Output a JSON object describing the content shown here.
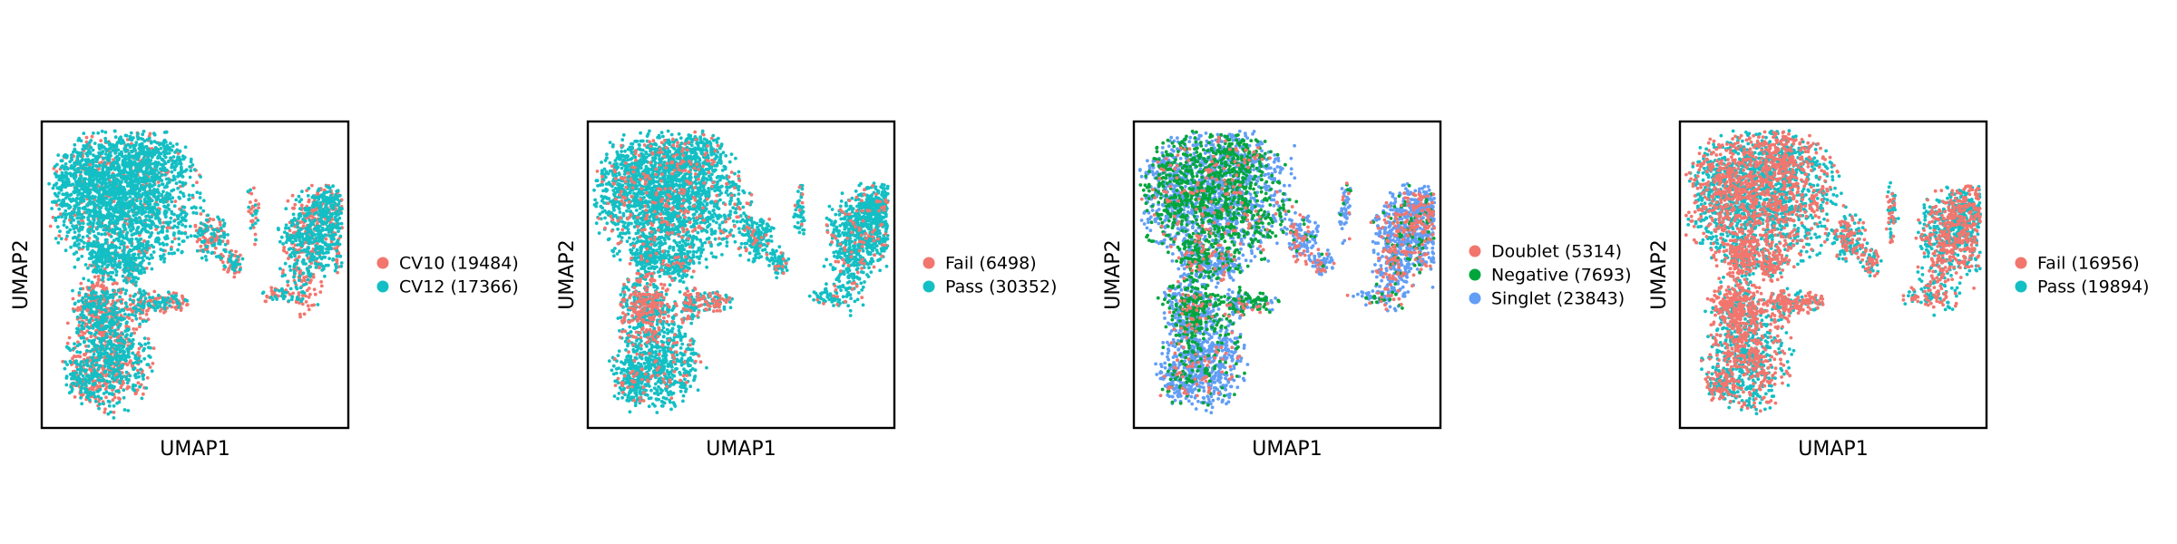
{
  "chart_data": [
    {
      "type": "scatter",
      "title": "",
      "xlabel": "UMAP1",
      "ylabel": "UMAP2",
      "grid": false,
      "legend_position": "right",
      "series": [
        {
          "name": "CV10 (19484)",
          "count": 19484,
          "color": "#F2766E"
        },
        {
          "name": "CV12 (17366)",
          "count": 17366,
          "color": "#13BFC4"
        }
      ]
    },
    {
      "type": "scatter",
      "title": "",
      "xlabel": "UMAP1",
      "ylabel": "UMAP2",
      "grid": false,
      "legend_position": "right",
      "series": [
        {
          "name": "Fail (6498)",
          "count": 6498,
          "color": "#F2766E"
        },
        {
          "name": "Pass (30352)",
          "count": 30352,
          "color": "#13BFC4"
        }
      ]
    },
    {
      "type": "scatter",
      "title": "",
      "xlabel": "UMAP1",
      "ylabel": "UMAP2",
      "grid": false,
      "legend_position": "right",
      "series": [
        {
          "name": "Doublet (5314)",
          "count": 5314,
          "color": "#F2766E"
        },
        {
          "name": "Negative (7693)",
          "count": 7693,
          "color": "#00A63C"
        },
        {
          "name": "Singlet (23843)",
          "count": 23843,
          "color": "#629EF5"
        }
      ]
    },
    {
      "type": "scatter",
      "title": "",
      "xlabel": "UMAP1",
      "ylabel": "UMAP2",
      "grid": false,
      "legend_position": "right",
      "series": [
        {
          "name": "Fail (16956)",
          "count": 16956,
          "color": "#F2766E"
        },
        {
          "name": "Pass (19894)",
          "count": 19894,
          "color": "#13BFC4"
        }
      ]
    }
  ]
}
